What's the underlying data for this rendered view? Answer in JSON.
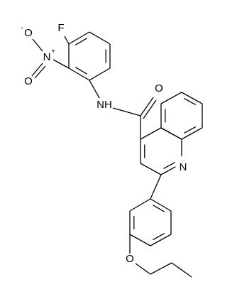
{
  "atoms": [
    {
      "label": "F"
    },
    {
      "label": "N",
      "charge": "+"
    },
    {
      "label": "O",
      "charge": "-"
    },
    {
      "label": "O"
    },
    {
      "label": "NH"
    },
    {
      "label": "O"
    },
    {
      "label": "N"
    },
    {
      "label": "O"
    }
  ]
}
